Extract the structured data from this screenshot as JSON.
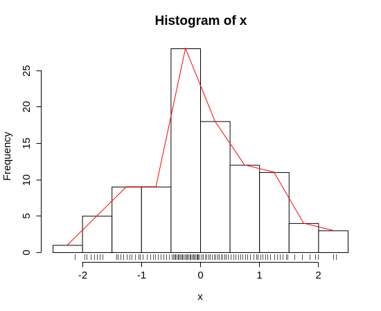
{
  "chart_data": {
    "type": "bar",
    "title": "Histogram of x",
    "xlabel": "x",
    "ylabel": "Frequency",
    "bins": [
      {
        "start": -2.5,
        "end": -2.0,
        "count": 1
      },
      {
        "start": -2.0,
        "end": -1.5,
        "count": 5
      },
      {
        "start": -1.5,
        "end": -1.0,
        "count": 9
      },
      {
        "start": -1.0,
        "end": -0.5,
        "count": 9
      },
      {
        "start": -0.5,
        "end": 0.0,
        "count": 28
      },
      {
        "start": 0.0,
        "end": 0.5,
        "count": 18
      },
      {
        "start": 0.5,
        "end": 1.0,
        "count": 12
      },
      {
        "start": 1.0,
        "end": 1.5,
        "count": 11
      },
      {
        "start": 1.5,
        "end": 2.0,
        "count": 4
      },
      {
        "start": 2.0,
        "end": 2.5,
        "count": 3
      }
    ],
    "frequency_polygon": {
      "color": "#ff0000",
      "points": [
        [
          -2.25,
          1
        ],
        [
          -1.75,
          5
        ],
        [
          -1.25,
          9
        ],
        [
          -0.75,
          9
        ],
        [
          -0.25,
          28
        ],
        [
          0.25,
          18
        ],
        [
          0.75,
          12
        ],
        [
          1.25,
          11
        ],
        [
          1.75,
          4
        ],
        [
          2.25,
          3
        ]
      ]
    },
    "rug": [
      -2.13,
      -1.96,
      -1.92,
      -1.86,
      -1.8,
      -1.75,
      -1.7,
      -1.65,
      -1.42,
      -1.4,
      -1.35,
      -1.3,
      -1.25,
      -1.2,
      -1.16,
      -1.1,
      -1.05,
      -1.02,
      -0.97,
      -0.9,
      -0.85,
      -0.8,
      -0.76,
      -0.72,
      -0.67,
      -0.62,
      -0.57,
      -0.53,
      -0.48,
      -0.46,
      -0.44,
      -0.42,
      -0.4,
      -0.38,
      -0.36,
      -0.34,
      -0.32,
      -0.3,
      -0.28,
      -0.26,
      -0.24,
      -0.22,
      -0.2,
      -0.18,
      -0.16,
      -0.14,
      -0.12,
      -0.1,
      -0.08,
      -0.06,
      -0.05,
      -0.03,
      -0.01,
      0.02,
      0.05,
      0.08,
      0.11,
      0.14,
      0.17,
      0.2,
      0.23,
      0.26,
      0.29,
      0.32,
      0.35,
      0.38,
      0.41,
      0.44,
      0.47,
      0.52,
      0.56,
      0.6,
      0.64,
      0.68,
      0.72,
      0.76,
      0.8,
      0.85,
      0.9,
      0.95,
      0.98,
      1.02,
      1.06,
      1.1,
      1.14,
      1.18,
      1.25,
      1.3,
      1.35,
      1.4,
      1.45,
      1.48,
      1.6,
      1.72,
      1.85,
      1.95,
      2.0,
      2.25,
      2.3
    ],
    "xlim": [
      -2.5,
      2.5
    ],
    "ylim": [
      0,
      28
    ],
    "x_ticks": [
      -2,
      -1,
      0,
      1,
      2
    ],
    "y_ticks": [
      0,
      5,
      10,
      15,
      20,
      25
    ]
  }
}
